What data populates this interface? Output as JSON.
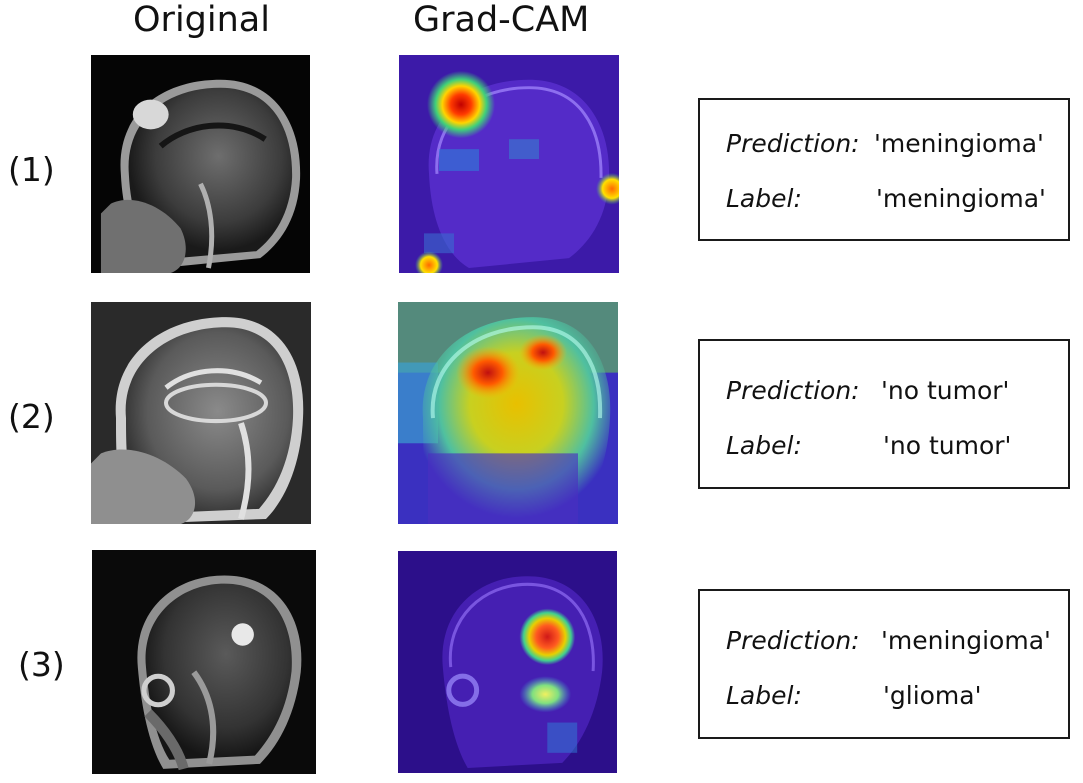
{
  "headers": {
    "original": "Original",
    "gradcam": "Grad-CAM"
  },
  "rows": [
    {
      "index_label": "(1)",
      "prediction_key": "Prediction:",
      "prediction": "'meningioma'",
      "label_key": "Label:",
      "label": "'meningioma'"
    },
    {
      "index_label": "(2)",
      "prediction_key": "Prediction:",
      "prediction": "'no tumor'",
      "label_key": "Label:",
      "label": "'no tumor'"
    },
    {
      "index_label": "(3)",
      "prediction_key": "Prediction:",
      "prediction": "'meningioma'",
      "label_key": "Label:",
      "label": "'glioma'"
    }
  ]
}
